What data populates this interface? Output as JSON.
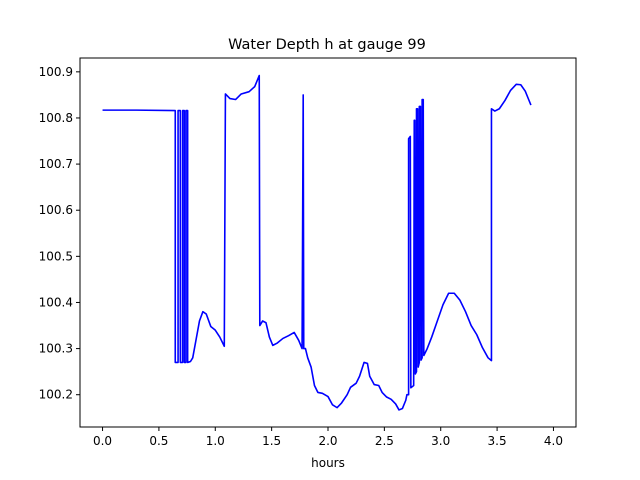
{
  "chart_data": {
    "type": "line",
    "title": "Water Depth h at gauge 99",
    "xlabel": "hours",
    "ylabel": "",
    "xlim": [
      -0.2,
      4.2
    ],
    "ylim": [
      100.13,
      100.93
    ],
    "xticks": [
      0.0,
      0.5,
      1.0,
      1.5,
      2.0,
      2.5,
      3.0,
      3.5,
      4.0
    ],
    "xtick_labels": [
      "0.0",
      "0.5",
      "1.0",
      "1.5",
      "2.0",
      "2.5",
      "3.0",
      "3.5",
      "4.0"
    ],
    "yticks": [
      100.2,
      100.3,
      100.4,
      100.5,
      100.6,
      100.7,
      100.8,
      100.9
    ],
    "ytick_labels": [
      "100.2",
      "100.3",
      "100.4",
      "100.5",
      "100.6",
      "100.7",
      "100.8",
      "100.9"
    ],
    "grid": false,
    "series": [
      {
        "color": "#0000ff",
        "points": [
          [
            0.0,
            100.817
          ],
          [
            0.3,
            100.817
          ],
          [
            0.645,
            100.816
          ],
          [
            0.645,
            100.27
          ],
          [
            0.67,
            100.27
          ],
          [
            0.67,
            100.816
          ],
          [
            0.69,
            100.816
          ],
          [
            0.69,
            100.27
          ],
          [
            0.71,
            100.27
          ],
          [
            0.71,
            100.816
          ],
          [
            0.725,
            100.816
          ],
          [
            0.725,
            100.27
          ],
          [
            0.74,
            100.27
          ],
          [
            0.74,
            100.816
          ],
          [
            0.755,
            100.816
          ],
          [
            0.755,
            100.27
          ],
          [
            0.78,
            100.272
          ],
          [
            0.8,
            100.28
          ],
          [
            0.83,
            100.32
          ],
          [
            0.86,
            100.36
          ],
          [
            0.89,
            100.38
          ],
          [
            0.92,
            100.375
          ],
          [
            0.96,
            100.348
          ],
          [
            1.0,
            100.34
          ],
          [
            1.04,
            100.325
          ],
          [
            1.08,
            100.305
          ],
          [
            1.09,
            100.852
          ],
          [
            1.13,
            100.842
          ],
          [
            1.18,
            100.84
          ],
          [
            1.23,
            100.852
          ],
          [
            1.3,
            100.857
          ],
          [
            1.35,
            100.868
          ],
          [
            1.39,
            100.892
          ],
          [
            1.395,
            100.35
          ],
          [
            1.42,
            100.36
          ],
          [
            1.45,
            100.356
          ],
          [
            1.48,
            100.325
          ],
          [
            1.51,
            100.307
          ],
          [
            1.55,
            100.312
          ],
          [
            1.6,
            100.322
          ],
          [
            1.65,
            100.328
          ],
          [
            1.7,
            100.335
          ],
          [
            1.74,
            100.318
          ],
          [
            1.77,
            100.3
          ],
          [
            1.78,
            100.85
          ],
          [
            1.785,
            100.3
          ],
          [
            1.8,
            100.3
          ],
          [
            1.82,
            100.28
          ],
          [
            1.85,
            100.26
          ],
          [
            1.88,
            100.22
          ],
          [
            1.91,
            100.205
          ],
          [
            1.95,
            100.203
          ],
          [
            2.0,
            100.196
          ],
          [
            2.04,
            100.178
          ],
          [
            2.08,
            100.172
          ],
          [
            2.12,
            100.182
          ],
          [
            2.17,
            100.2
          ],
          [
            2.2,
            100.216
          ],
          [
            2.25,
            100.225
          ],
          [
            2.28,
            100.24
          ],
          [
            2.32,
            100.27
          ],
          [
            2.35,
            100.268
          ],
          [
            2.37,
            100.24
          ],
          [
            2.41,
            100.222
          ],
          [
            2.45,
            100.22
          ],
          [
            2.48,
            100.205
          ],
          [
            2.52,
            100.195
          ],
          [
            2.56,
            100.19
          ],
          [
            2.6,
            100.18
          ],
          [
            2.63,
            100.167
          ],
          [
            2.66,
            100.17
          ],
          [
            2.69,
            100.188
          ],
          [
            2.7,
            100.2
          ],
          [
            2.715,
            100.2
          ],
          [
            2.715,
            100.755
          ],
          [
            2.73,
            100.76
          ],
          [
            2.735,
            100.215
          ],
          [
            2.76,
            100.22
          ],
          [
            2.765,
            100.795
          ],
          [
            2.77,
            100.795
          ],
          [
            2.775,
            100.245
          ],
          [
            2.785,
            100.25
          ],
          [
            2.785,
            100.82
          ],
          [
            2.795,
            100.82
          ],
          [
            2.8,
            100.26
          ],
          [
            2.81,
            100.27
          ],
          [
            2.81,
            100.825
          ],
          [
            2.82,
            100.825
          ],
          [
            2.825,
            100.275
          ],
          [
            2.835,
            100.28
          ],
          [
            2.835,
            100.84
          ],
          [
            2.845,
            100.84
          ],
          [
            2.85,
            100.285
          ],
          [
            2.88,
            100.3
          ],
          [
            2.92,
            100.325
          ],
          [
            2.97,
            100.36
          ],
          [
            3.02,
            100.395
          ],
          [
            3.07,
            100.42
          ],
          [
            3.12,
            100.42
          ],
          [
            3.17,
            100.405
          ],
          [
            3.22,
            100.38
          ],
          [
            3.27,
            100.35
          ],
          [
            3.32,
            100.33
          ],
          [
            3.37,
            100.302
          ],
          [
            3.42,
            100.28
          ],
          [
            3.45,
            100.274
          ],
          [
            3.45,
            100.82
          ],
          [
            3.48,
            100.815
          ],
          [
            3.52,
            100.82
          ],
          [
            3.57,
            100.838
          ],
          [
            3.62,
            100.86
          ],
          [
            3.67,
            100.873
          ],
          [
            3.71,
            100.872
          ],
          [
            3.75,
            100.858
          ],
          [
            3.78,
            100.84
          ],
          [
            3.8,
            100.828
          ]
        ]
      }
    ]
  }
}
